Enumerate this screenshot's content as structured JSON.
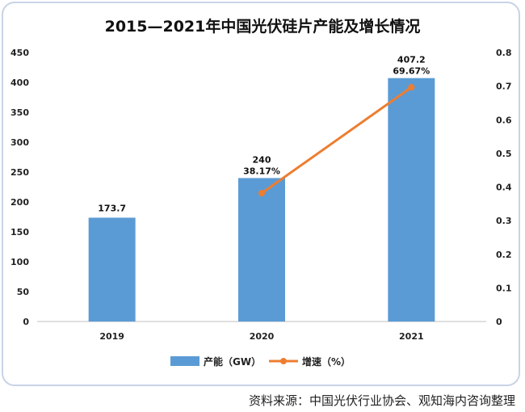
{
  "title": "2015—2021年中国光伏硅片产能及增长情况",
  "source": "资料来源：中国光伏行业协会、观知海内咨询整理",
  "colors": {
    "bar": "#5b9bd5",
    "line": "#ed7d31"
  },
  "chart_data": {
    "type": "bar",
    "title": "2015—2021年中国光伏硅片产能及增长情况",
    "categories": [
      "2019",
      "2020",
      "2021"
    ],
    "series": [
      {
        "name": "产能（GW）",
        "type": "bar",
        "axis": "left",
        "values": [
          173.7,
          240,
          407.2
        ],
        "labels": [
          "173.7",
          "240",
          "407.2"
        ]
      },
      {
        "name": "增速（%）",
        "type": "line",
        "axis": "right",
        "values": [
          null,
          0.3817,
          0.6967
        ],
        "labels": [
          "",
          "38.17%",
          "69.67%"
        ]
      }
    ],
    "y_left": {
      "min": 0,
      "max": 450,
      "ticks": [
        "0",
        "50",
        "100",
        "150",
        "200",
        "250",
        "300",
        "350",
        "400",
        "450"
      ]
    },
    "y_right": {
      "min": 0,
      "max": 0.8,
      "ticks": [
        "0",
        "0.1",
        "0.2",
        "0.3",
        "0.4",
        "0.5",
        "0.6",
        "0.7",
        "0.8"
      ]
    },
    "grid": false,
    "legend_position": "bottom"
  }
}
